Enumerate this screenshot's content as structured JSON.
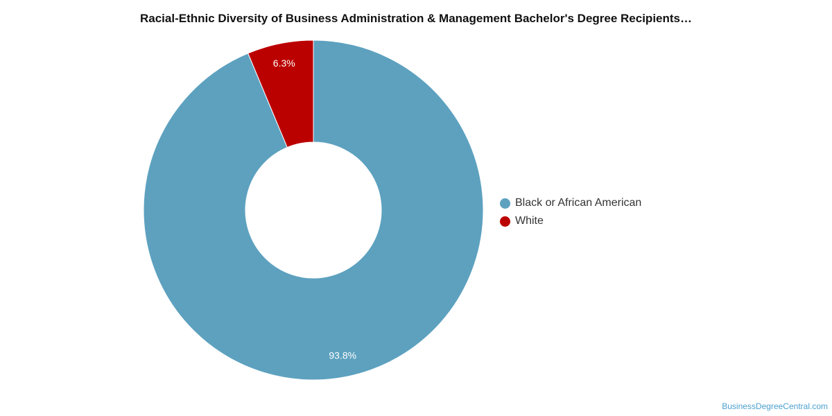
{
  "chart_data": {
    "type": "pie",
    "title": "Racial-Ethnic Diversity of Business Administration & Management Bachelor's Degree Recipients…",
    "donut": true,
    "slices": [
      {
        "label": "White",
        "value": 6.3,
        "display": "6.3%",
        "color": "#bb0000"
      },
      {
        "label": "Black or African American",
        "value": 93.8,
        "display": "93.8%",
        "color": "#5da1bf"
      }
    ],
    "legend": {
      "position": "right",
      "items": [
        {
          "label": "Black or African American",
          "color": "#5da1bf"
        },
        {
          "label": "White",
          "color": "#bb0000"
        }
      ]
    }
  },
  "credit": "BusinessDegreeCentral.com"
}
